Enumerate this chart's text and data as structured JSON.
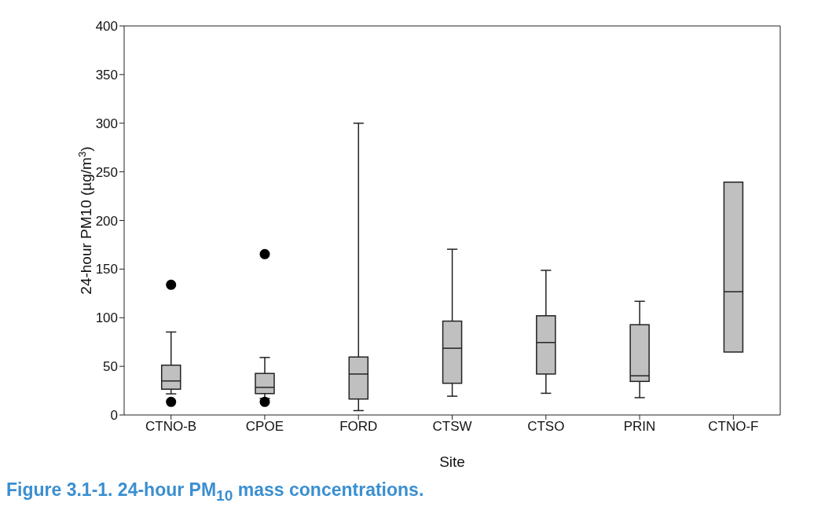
{
  "chart_data": {
    "type": "box",
    "xlabel": "Site",
    "ylabel": "24-hour PM10 (µg/m$^{3}$)",
    "annotations": [
      "Figure 3.1-1. 24-hour PM$_{10}$ mass concentrations."
    ],
    "categories": [
      "CTNO-B",
      "CPOE",
      "FORD",
      "CTSW",
      "CTSO",
      "PRIN",
      "CTNO-F"
    ],
    "color": "#c0c0c0",
    "boxes": [
      {
        "low": 21.7,
        "q1": 26.5,
        "median": 35,
        "q3": 51.2,
        "high": 85.3,
        "outliers": [
          133.9,
          13.5
        ]
      },
      {
        "low": 17,
        "q1": 22,
        "median": 28.4,
        "q3": 42.7,
        "high": 59.1,
        "outliers": [
          165.4,
          13.5
        ]
      },
      {
        "low": 4.5,
        "q1": 16.4,
        "median": 42.1,
        "q3": 59.6,
        "high": 300
      },
      {
        "low": 19.3,
        "q1": 32.6,
        "median": 68.6,
        "q3": 96.5,
        "high": 170.4
      },
      {
        "low": 22.3,
        "q1": 42.1,
        "median": 74.5,
        "q3": 102,
        "high": 148.7
      },
      {
        "low": 17.8,
        "q1": 34.5,
        "median": 40.3,
        "q3": 92.8,
        "high": 116.9
      },
      {
        "low": 64.7,
        "q1": 64.7,
        "median": 126.7,
        "q3": 239.4,
        "high": 239.4
      }
    ],
    "ylim": [
      0,
      400
    ],
    "yticks": [
      0,
      50,
      100,
      150,
      200,
      250,
      300,
      350,
      400
    ]
  }
}
